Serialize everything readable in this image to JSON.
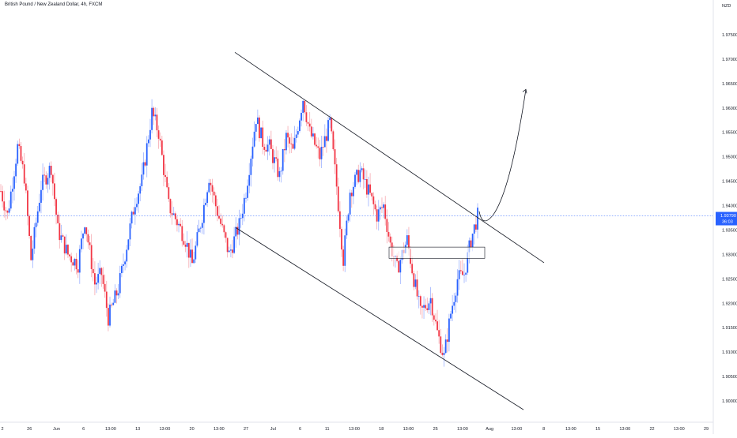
{
  "header": {
    "symbol_title": "British Pound / New Zealand Dollar, 4h, FXCM",
    "currency": "NZD"
  },
  "price_tag": {
    "price": "1.93790",
    "countdown": "36:03"
  },
  "colors": {
    "up": "#2962ff",
    "down": "#f23645",
    "wick_up": "#9db2ff",
    "wick_down": "#f7a9b0",
    "price_line": "#2962ff",
    "grid_text": "#131722",
    "axis_line": "#e0e3eb"
  },
  "chart_data": {
    "type": "candlestick",
    "y_axis": {
      "min": 1.9,
      "max": 1.975,
      "ticks": [
        "1.97500",
        "1.97000",
        "1.96500",
        "1.96000",
        "1.95500",
        "1.95000",
        "1.94500",
        "1.94000",
        "1.93500",
        "1.93000",
        "1.92500",
        "1.92000",
        "1.91500",
        "1.91000",
        "1.90500",
        "1.90000"
      ]
    },
    "x_axis": {
      "ticks": [
        "2",
        "26",
        "Jun",
        "6",
        "13:00",
        "13",
        "13:00",
        "20",
        "13:00",
        "27",
        "Jul",
        "6",
        "11",
        "13:00",
        "18",
        "13:00",
        "25",
        "13:00",
        "Aug",
        "13:00",
        "8",
        "13:00",
        "15",
        "13:00",
        "22",
        "13:00",
        "29"
      ]
    },
    "current_price": 1.9379,
    "candles_key_path": [
      [
        0,
        1.943
      ],
      [
        4,
        1.938
      ],
      [
        10,
        1.952
      ],
      [
        14,
        1.946
      ],
      [
        18,
        1.929
      ],
      [
        24,
        1.944
      ],
      [
        30,
        1.948
      ],
      [
        34,
        1.935
      ],
      [
        40,
        1.93
      ],
      [
        46,
        1.928
      ],
      [
        50,
        1.937
      ],
      [
        56,
        1.924
      ],
      [
        60,
        1.926
      ],
      [
        64,
        1.917
      ],
      [
        70,
        1.923
      ],
      [
        74,
        1.93
      ],
      [
        80,
        1.941
      ],
      [
        84,
        1.945
      ],
      [
        90,
        1.959
      ],
      [
        94,
        1.955
      ],
      [
        100,
        1.94
      ],
      [
        106,
        1.936
      ],
      [
        110,
        1.933
      ],
      [
        114,
        1.928
      ],
      [
        120,
        1.938
      ],
      [
        124,
        1.946
      ],
      [
        128,
        1.94
      ],
      [
        132,
        1.935
      ],
      [
        136,
        1.93
      ],
      [
        142,
        1.936
      ],
      [
        146,
        1.943
      ],
      [
        152,
        1.958
      ],
      [
        156,
        1.953
      ],
      [
        160,
        1.952
      ],
      [
        166,
        1.946
      ],
      [
        170,
        1.954
      ],
      [
        174,
        1.951
      ],
      [
        180,
        1.962
      ],
      [
        184,
        1.955
      ],
      [
        190,
        1.95
      ],
      [
        196,
        1.957
      ],
      [
        200,
        1.944
      ],
      [
        204,
        1.929
      ],
      [
        208,
        1.943
      ],
      [
        214,
        1.947
      ],
      [
        220,
        1.942
      ],
      [
        224,
        1.938
      ],
      [
        228,
        1.94
      ],
      [
        232,
        1.932
      ],
      [
        236,
        1.927
      ],
      [
        242,
        1.933
      ],
      [
        246,
        1.925
      ],
      [
        250,
        1.918
      ],
      [
        256,
        1.921
      ],
      [
        260,
        1.914
      ],
      [
        264,
        1.909
      ],
      [
        268,
        1.918
      ],
      [
        272,
        1.925
      ],
      [
        276,
        1.926
      ],
      [
        280,
        1.933
      ],
      [
        284,
        1.9379
      ]
    ],
    "annotations": {
      "channel_upper": [
        [
          0.0,
          1.9714
        ],
        [
          1.0,
          1.9283
        ]
      ],
      "channel_lower": [
        [
          0.0,
          1.9355
        ],
        [
          1.0,
          1.8982
        ]
      ],
      "box": {
        "top": 1.9315,
        "bottom": 1.9292
      },
      "projection_arrow_end": 1.9638
    }
  }
}
